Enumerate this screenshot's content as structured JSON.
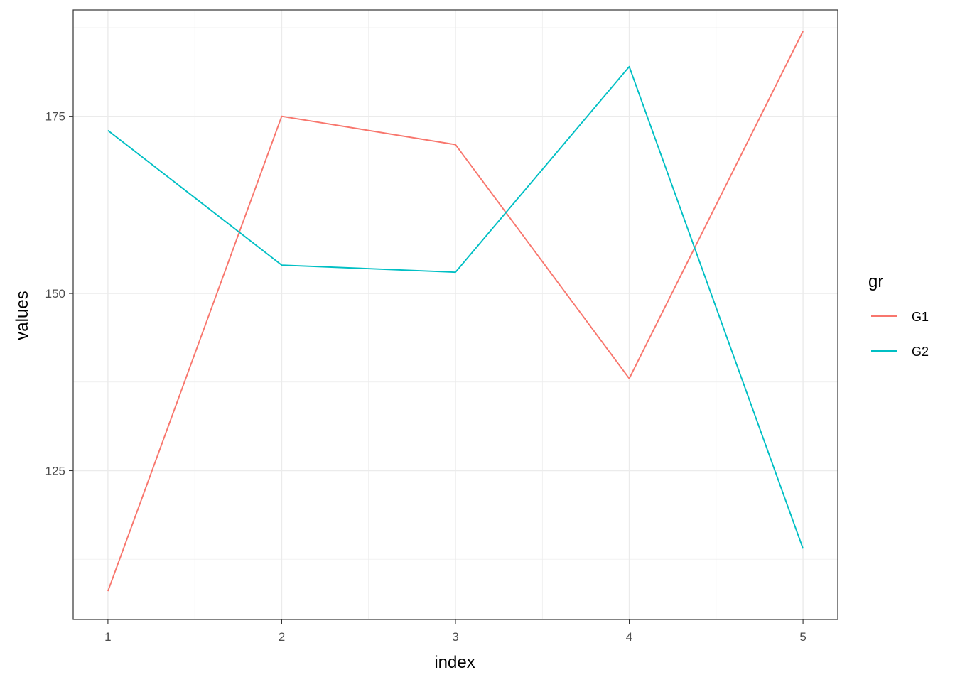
{
  "chart_data": {
    "type": "line",
    "x": [
      1,
      2,
      3,
      4,
      5
    ],
    "series": [
      {
        "name": "G1",
        "values": [
          108,
          175,
          171,
          138,
          187
        ],
        "color": "#F8766D"
      },
      {
        "name": "G2",
        "values": [
          173,
          154,
          153,
          182,
          114
        ],
        "color": "#00BFC4"
      }
    ],
    "xlabel": "index",
    "ylabel": "values",
    "legend_title": "gr",
    "legend_position": "right",
    "xlim": [
      0.8,
      5.2
    ],
    "ylim": [
      104,
      190
    ],
    "x_ticks": [
      1,
      2,
      3,
      4,
      5
    ],
    "x_tick_labels": [
      "1",
      "2",
      "3",
      "4",
      "5"
    ],
    "y_ticks": [
      125,
      150,
      175
    ],
    "y_tick_labels": [
      "125",
      "150",
      "175"
    ],
    "grid": true,
    "theme": "bw",
    "panel_border_color": "#333333",
    "grid_color": "#ebebeb"
  }
}
